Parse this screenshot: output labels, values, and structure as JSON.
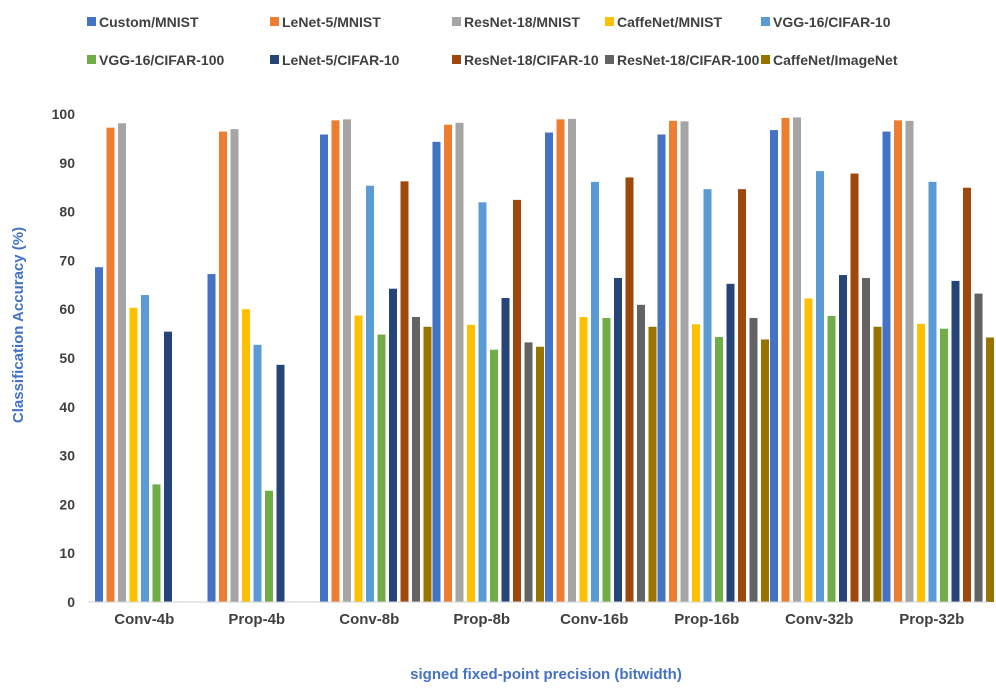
{
  "chart_data": {
    "type": "bar",
    "title": "",
    "xlabel": "signed fixed-point precision (bitwidth)",
    "ylabel": "Classification Accuracy (%)",
    "ylim": [
      0,
      100
    ],
    "yticks": [
      0,
      10,
      20,
      30,
      40,
      50,
      60,
      70,
      80,
      90,
      100
    ],
    "grid": false,
    "legend_position": "top",
    "categories": [
      "Conv-4b",
      "Prop-4b",
      "Conv-8b",
      "Prop-8b",
      "Conv-16b",
      "Prop-16b",
      "Conv-32b",
      "Prop-32b"
    ],
    "series": [
      {
        "name": "Custom/MNIST",
        "color": "#4472c4",
        "values": [
          68.6,
          67.2,
          95.8,
          94.3,
          96.2,
          95.8,
          96.7,
          96.4
        ]
      },
      {
        "name": "LeNet-5/MNIST",
        "color": "#ed7d31",
        "values": [
          97.2,
          96.4,
          98.7,
          97.8,
          98.9,
          98.6,
          99.2,
          98.7
        ]
      },
      {
        "name": "ResNet-18/MNIST",
        "color": "#a5a5a5",
        "values": [
          98.1,
          96.9,
          98.9,
          98.2,
          99.0,
          98.5,
          99.3,
          98.6
        ]
      },
      {
        "name": "CaffeNet/MNIST",
        "color": "#ffc000",
        "values": [
          60.3,
          60.0,
          58.7,
          56.8,
          58.4,
          56.9,
          62.2,
          57.0
        ]
      },
      {
        "name": "VGG-16/CIFAR-10",
        "color": "#5b9bd5",
        "values": [
          62.9,
          52.7,
          85.3,
          81.9,
          86.1,
          84.6,
          88.3,
          86.1
        ]
      },
      {
        "name": "VGG-16/CIFAR-100",
        "color": "#70ad47",
        "values": [
          24.1,
          22.8,
          54.8,
          51.7,
          58.2,
          54.3,
          58.6,
          56.0
        ]
      },
      {
        "name": "LeNet-5/CIFAR-10",
        "color": "#264478",
        "values": [
          55.4,
          48.6,
          64.2,
          62.3,
          66.4,
          65.2,
          67.0,
          65.8
        ]
      },
      {
        "name": "ResNet-18/CIFAR-10",
        "color": "#9e480e",
        "values": [
          0,
          0,
          86.2,
          82.4,
          87.0,
          84.6,
          87.8,
          84.9
        ]
      },
      {
        "name": "ResNet-18/CIFAR-100",
        "color": "#636363",
        "values": [
          0,
          0,
          58.4,
          53.2,
          60.9,
          58.2,
          66.4,
          63.2
        ]
      },
      {
        "name": "CaffeNet/ImageNet",
        "color": "#997300",
        "values": [
          0,
          0,
          56.4,
          52.3,
          56.4,
          53.8,
          56.4,
          54.2
        ]
      }
    ]
  }
}
